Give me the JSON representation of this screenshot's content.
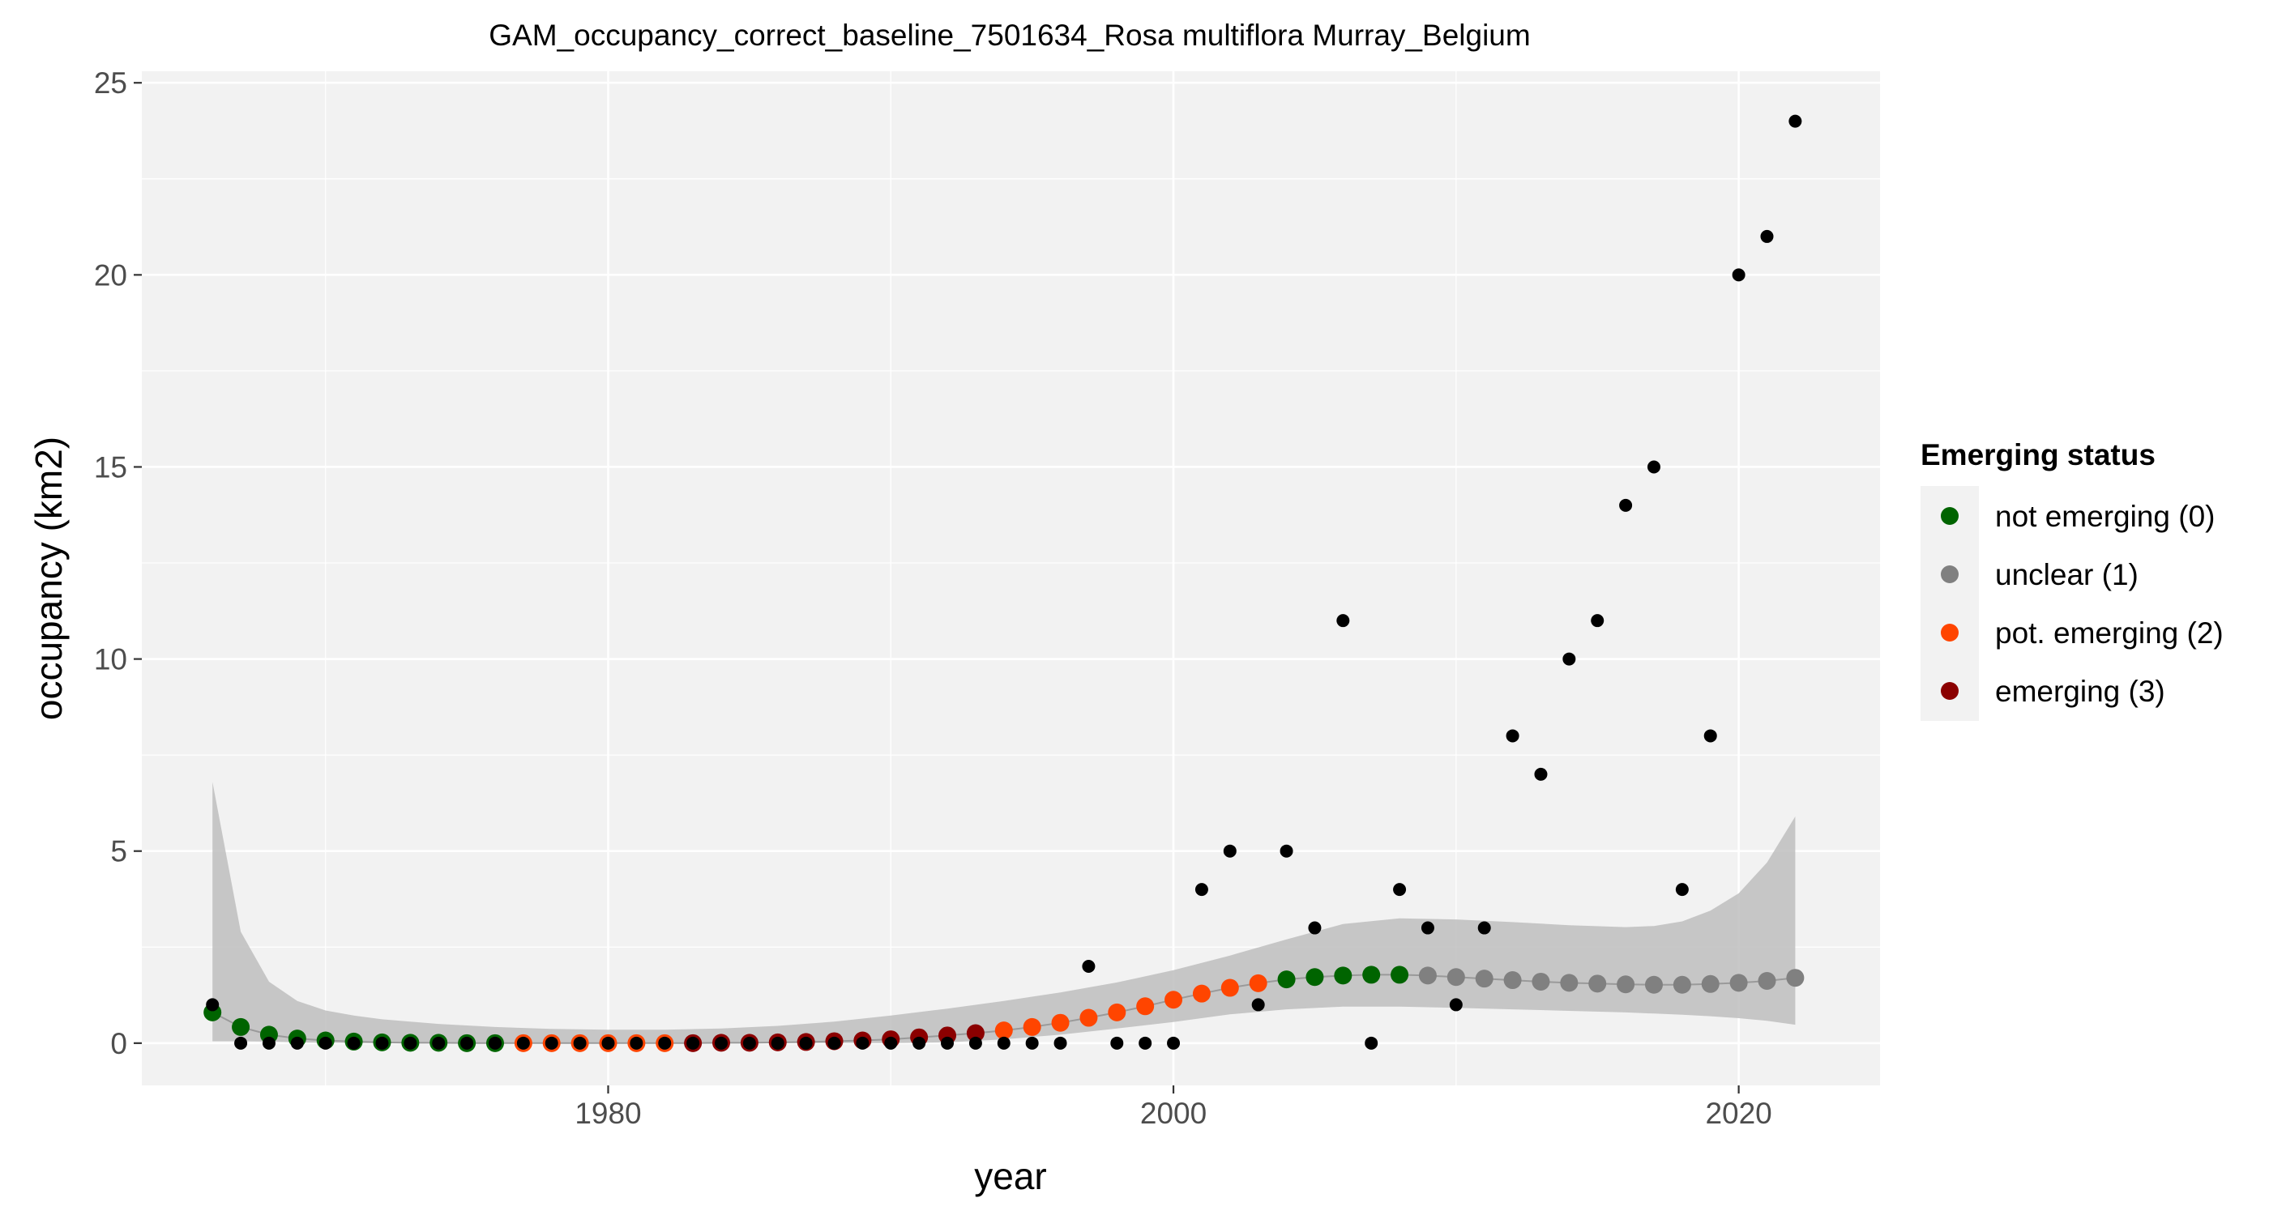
{
  "chart_data": {
    "type": "scatter",
    "title": "GAM_occupancy_correct_baseline_7501634_Rosa multiflora Murray_Belgium",
    "xlabel": "year",
    "ylabel": "occupancy (km2)",
    "xlim": [
      1963.5,
      2025.0
    ],
    "ylim": [
      -1.1,
      25.3
    ],
    "x_ticks": [
      1980,
      2000,
      2020
    ],
    "x_tick_labels": [
      "1980",
      "2000",
      "2020"
    ],
    "y_ticks": [
      0,
      5,
      10,
      15,
      20,
      25
    ],
    "y_tick_labels": [
      "0",
      "5",
      "10",
      "15",
      "20",
      "25"
    ],
    "grid": true,
    "legend": {
      "title": "Emerging status",
      "position": "right",
      "entries": [
        {
          "label": "not emerging (0)",
          "color": "#006400",
          "status": 0
        },
        {
          "label": "unclear (1)",
          "color": "#808080",
          "status": 1
        },
        {
          "label": "pot. emerging (2)",
          "color": "#FF4500",
          "status": 2
        },
        {
          "label": "emerging (3)",
          "color": "#8B0000",
          "status": 3
        }
      ]
    },
    "colors": {
      "observed": "#000000",
      "band": "#bebebe",
      "panel": "#f2f2f2",
      "grid": "#ffffff"
    },
    "observed": {
      "x": [
        1966,
        1967,
        1968,
        1969,
        1970,
        1971,
        1972,
        1973,
        1974,
        1975,
        1976,
        1977,
        1978,
        1979,
        1980,
        1981,
        1982,
        1983,
        1984,
        1985,
        1986,
        1987,
        1988,
        1989,
        1990,
        1991,
        1992,
        1993,
        1994,
        1995,
        1996,
        1997,
        1998,
        1999,
        2000,
        2001,
        2002,
        2003,
        2004,
        2005,
        2006,
        2007,
        2008,
        2009,
        2010,
        2011,
        2012,
        2013,
        2014,
        2015,
        2016,
        2017,
        2018,
        2019,
        2020,
        2021,
        2022
      ],
      "y": [
        1,
        0,
        0,
        0,
        0,
        0,
        0,
        0,
        0,
        0,
        0,
        0,
        0,
        0,
        0,
        0,
        0,
        0,
        0,
        0,
        0,
        0,
        0,
        0,
        0,
        0,
        0,
        0,
        0,
        0,
        0,
        2,
        0,
        0,
        0,
        4,
        5,
        1,
        5,
        3,
        11,
        0,
        4,
        3,
        1,
        3,
        8,
        7,
        10,
        11,
        14,
        15,
        4,
        8,
        20,
        21,
        24
      ]
    },
    "fitted": {
      "x": [
        1966,
        1967,
        1968,
        1969,
        1970,
        1971,
        1972,
        1973,
        1974,
        1975,
        1976,
        1977,
        1978,
        1979,
        1980,
        1981,
        1982,
        1983,
        1984,
        1985,
        1986,
        1987,
        1988,
        1989,
        1990,
        1991,
        1992,
        1993,
        1994,
        1995,
        1996,
        1997,
        1998,
        1999,
        2000,
        2001,
        2002,
        2003,
        2004,
        2005,
        2006,
        2007,
        2008,
        2009,
        2010,
        2011,
        2012,
        2013,
        2014,
        2015,
        2016,
        2017,
        2018,
        2019,
        2020,
        2021,
        2022
      ],
      "y": [
        0.8,
        0.42,
        0.22,
        0.12,
        0.07,
        0.04,
        0.02,
        0.01,
        0.01,
        0,
        0,
        0,
        0,
        0,
        0,
        0,
        0,
        0,
        0.01,
        0.01,
        0.02,
        0.03,
        0.05,
        0.07,
        0.1,
        0.15,
        0.2,
        0.26,
        0.33,
        0.42,
        0.53,
        0.66,
        0.8,
        0.96,
        1.13,
        1.29,
        1.44,
        1.56,
        1.66,
        1.72,
        1.76,
        1.78,
        1.78,
        1.76,
        1.72,
        1.68,
        1.64,
        1.6,
        1.57,
        1.55,
        1.53,
        1.52,
        1.52,
        1.54,
        1.57,
        1.62,
        1.7
      ],
      "status": [
        0,
        0,
        0,
        0,
        0,
        0,
        0,
        0,
        0,
        0,
        0,
        2,
        2,
        2,
        2,
        2,
        2,
        3,
        3,
        3,
        3,
        3,
        3,
        3,
        3,
        3,
        3,
        3,
        2,
        2,
        2,
        2,
        2,
        2,
        2,
        2,
        2,
        2,
        0,
        0,
        0,
        0,
        0,
        1,
        1,
        1,
        1,
        1,
        1,
        1,
        1,
        1,
        1,
        1,
        1,
        1,
        1
      ]
    },
    "band": {
      "x": [
        1966,
        1967,
        1968,
        1969,
        1970,
        1971,
        1972,
        1974,
        1976,
        1978,
        1980,
        1982,
        1984,
        1986,
        1988,
        1990,
        1992,
        1994,
        1996,
        1998,
        2000,
        2002,
        2004,
        2006,
        2008,
        2010,
        2012,
        2014,
        2016,
        2017,
        2018,
        2019,
        2020,
        2021,
        2022
      ],
      "lower": [
        0.05,
        0.05,
        0.04,
        0.02,
        0.01,
        0,
        0,
        0,
        0,
        0,
        0,
        0,
        0,
        0,
        0,
        0,
        0.02,
        0.1,
        0.22,
        0.38,
        0.55,
        0.75,
        0.88,
        0.95,
        0.95,
        0.92,
        0.88,
        0.84,
        0.8,
        0.77,
        0.74,
        0.7,
        0.65,
        0.58,
        0.48
      ],
      "upper": [
        6.8,
        2.9,
        1.6,
        1.1,
        0.85,
        0.72,
        0.62,
        0.5,
        0.42,
        0.37,
        0.35,
        0.35,
        0.38,
        0.45,
        0.56,
        0.72,
        0.9,
        1.1,
        1.32,
        1.58,
        1.9,
        2.28,
        2.7,
        3.1,
        3.25,
        3.22,
        3.15,
        3.07,
        3.02,
        3.05,
        3.17,
        3.45,
        3.9,
        4.7,
        5.9
      ]
    }
  }
}
